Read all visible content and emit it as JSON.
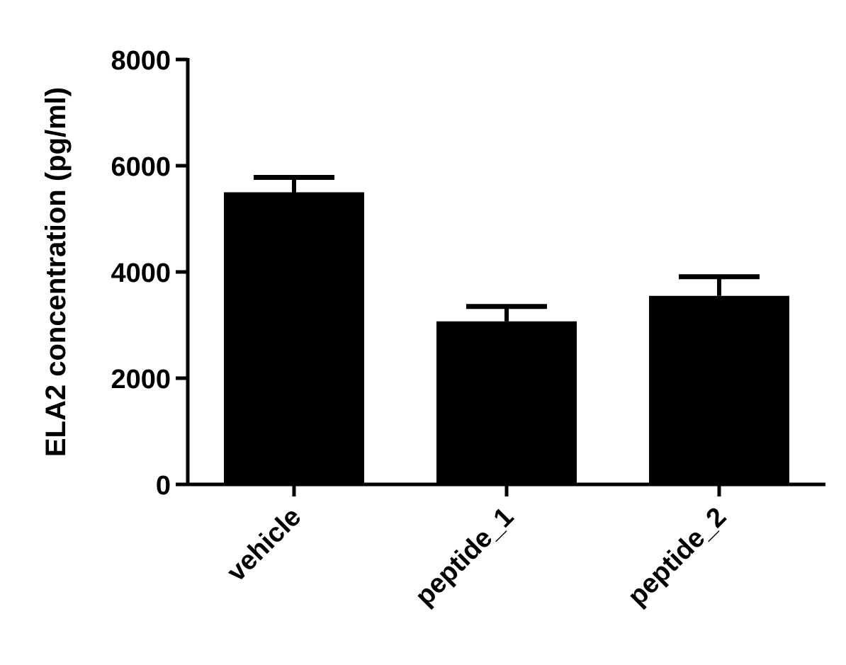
{
  "chart_data": {
    "type": "bar",
    "y_label": "ELA2 concentration (pg/ml)",
    "categories": [
      "vehicle",
      "peptide_1",
      "peptide_2"
    ],
    "values": [
      5500,
      3070,
      3550
    ],
    "errors": [
      280,
      280,
      360
    ],
    "color": "#000000",
    "ylim": [
      0,
      8000
    ],
    "yticks": [
      0,
      2000,
      4000,
      6000,
      8000
    ],
    "grid": false
  }
}
